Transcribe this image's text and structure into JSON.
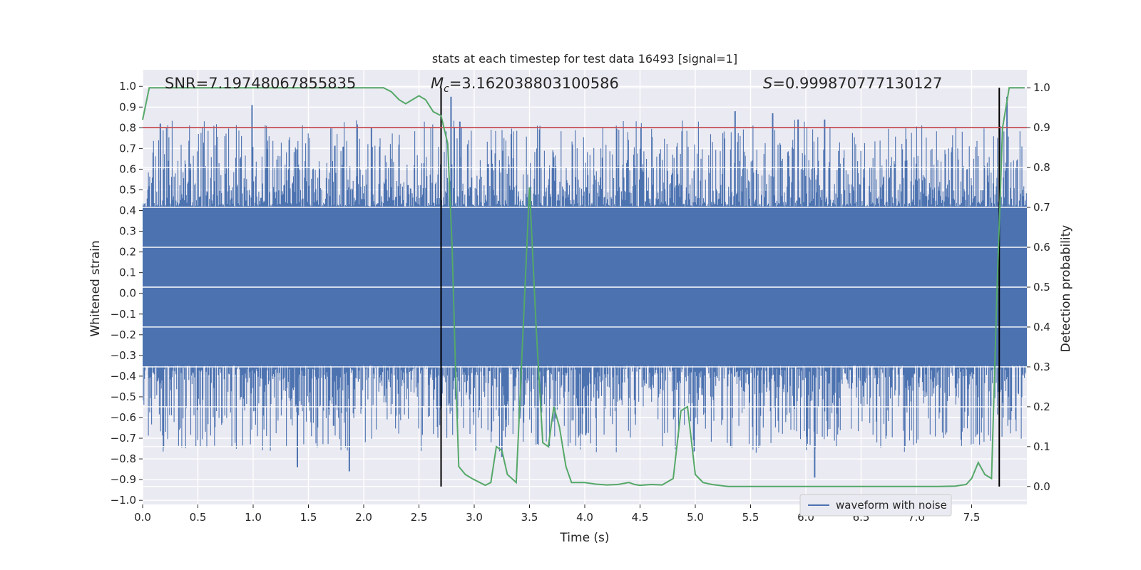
{
  "chart_data": {
    "type": "line",
    "title": "stats at each timestep for test data 16493 [signal=1]",
    "xlabel": "Time (s)",
    "ylabel_left": "Whitened strain",
    "ylabel_right": "Detection probability",
    "xlim": [
      0.0,
      8.0
    ],
    "ylim_left": [
      -1.02,
      1.08
    ],
    "ylim_right": [
      -0.045,
      1.045
    ],
    "x_ticks": [
      "0.0",
      "0.5",
      "1.0",
      "1.5",
      "2.0",
      "2.5",
      "3.0",
      "3.5",
      "4.0",
      "4.5",
      "5.0",
      "5.5",
      "6.0",
      "6.5",
      "7.0",
      "7.5"
    ],
    "x_tick_values": [
      0.0,
      0.5,
      1.0,
      1.5,
      2.0,
      2.5,
      3.0,
      3.5,
      4.0,
      4.5,
      5.0,
      5.5,
      6.0,
      6.5,
      7.0,
      7.5
    ],
    "y_left_ticks": [
      "1.0",
      "0.9",
      "0.8",
      "0.7",
      "0.6",
      "0.5",
      "0.4",
      "0.3",
      "0.2",
      "0.1",
      "0.0",
      "−0.1",
      "−0.2",
      "−0.3",
      "−0.4",
      "−0.5",
      "−0.6",
      "−0.7",
      "−0.8",
      "−0.9",
      "−1.0"
    ],
    "y_left_tick_values": [
      1.0,
      0.9,
      0.8,
      0.7,
      0.6,
      0.5,
      0.4,
      0.3,
      0.2,
      0.1,
      0.0,
      -0.1,
      -0.2,
      -0.3,
      -0.4,
      -0.5,
      -0.6,
      -0.7,
      -0.8,
      -0.9,
      -1.0
    ],
    "y_right_ticks": [
      "1.0",
      "0.9",
      "0.8",
      "0.7",
      "0.6",
      "0.5",
      "0.4",
      "0.3",
      "0.2",
      "0.1",
      "0.0"
    ],
    "y_right_tick_values": [
      1.0,
      0.9,
      0.8,
      0.7,
      0.6,
      0.5,
      0.4,
      0.3,
      0.2,
      0.1,
      0.0
    ],
    "annotations": {
      "snr": "SNR=7.19748067855835",
      "mc_symbol": "M",
      "mc_sub": "c",
      "mc_value": "=3.162038803100586",
      "s_symbol": "S",
      "s_value": "=0.999870777130127"
    },
    "legend": {
      "label": "waveform with noise",
      "placement": "lower-right"
    },
    "threshold": {
      "value_right_axis": 0.9,
      "color": "#c44e52"
    },
    "vertical_markers_x": [
      2.7,
      7.75
    ],
    "waveform": {
      "name": "waveform with noise",
      "color": "#4c72b0",
      "core_band": [
        -0.35,
        0.42
      ],
      "peak_spikes_x": [
        0.16,
        0.99,
        1.4,
        1.87,
        2.07,
        2.79,
        2.87,
        3.25,
        5.36,
        5.7,
        5.93,
        6.08,
        6.17,
        7.82
      ],
      "peak_spikes_y": [
        0.82,
        0.91,
        -0.84,
        -0.86,
        0.8,
        0.95,
        0.83,
        -0.79,
        0.88,
        0.87,
        0.84,
        -0.89,
        0.84,
        0.95
      ]
    },
    "probability": {
      "color": "#55a868",
      "x": [
        0.0,
        0.06,
        0.2,
        0.5,
        1.0,
        1.5,
        2.0,
        2.18,
        2.25,
        2.32,
        2.38,
        2.44,
        2.5,
        2.56,
        2.63,
        2.7,
        2.76,
        2.8,
        2.83,
        2.86,
        2.92,
        2.98,
        3.05,
        3.1,
        3.15,
        3.2,
        3.25,
        3.3,
        3.38,
        3.5,
        3.56,
        3.62,
        3.67,
        3.72,
        3.77,
        3.83,
        3.88,
        3.95,
        4.0,
        4.1,
        4.2,
        4.3,
        4.4,
        4.45,
        4.5,
        4.6,
        4.7,
        4.8,
        4.87,
        4.93,
        5.0,
        5.07,
        5.15,
        5.3,
        5.5,
        5.7,
        6.0,
        6.5,
        6.8,
        7.0,
        7.2,
        7.35,
        7.45,
        7.5,
        7.56,
        7.62,
        7.68,
        7.73,
        7.78,
        7.84,
        7.92,
        7.98
      ],
      "y": [
        0.92,
        1.0,
        1.0,
        1.0,
        1.0,
        1.0,
        1.0,
        1.0,
        0.99,
        0.97,
        0.96,
        0.97,
        0.98,
        0.97,
        0.94,
        0.93,
        0.86,
        0.6,
        0.3,
        0.05,
        0.03,
        0.02,
        0.01,
        0.003,
        0.01,
        0.1,
        0.09,
        0.03,
        0.01,
        0.75,
        0.4,
        0.11,
        0.1,
        0.2,
        0.15,
        0.05,
        0.01,
        0.01,
        0.01,
        0.006,
        0.004,
        0.005,
        0.01,
        0.005,
        0.003,
        0.005,
        0.004,
        0.02,
        0.19,
        0.2,
        0.03,
        0.01,
        0.005,
        0.0,
        0.0,
        0.0,
        0.0,
        0.0,
        0.0,
        0.0,
        0.0,
        0.001,
        0.005,
        0.02,
        0.06,
        0.03,
        0.02,
        0.5,
        0.9,
        1.0,
        1.0,
        1.0
      ]
    }
  }
}
